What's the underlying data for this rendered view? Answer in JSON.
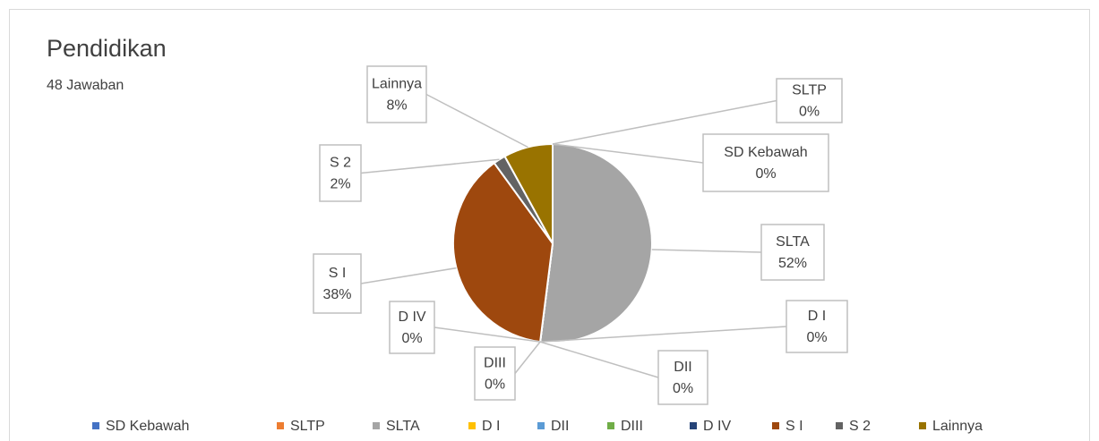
{
  "chart_data": {
    "type": "pie",
    "title": "Pendidikan",
    "subtitle": "48 Jawaban",
    "categories": [
      "SD Kebawah",
      "SLTP",
      "SLTA",
      "D I",
      "DII",
      "DIII",
      "D IV",
      "S I",
      "S 2",
      "Lainnya"
    ],
    "values": [
      0,
      0,
      52,
      0,
      0,
      0,
      0,
      38,
      2,
      8
    ],
    "value_labels": [
      "0%",
      "0%",
      "52%",
      "0%",
      "0%",
      "0%",
      "0%",
      "38%",
      "2%",
      "8%"
    ],
    "colors": [
      "#4472c4",
      "#ed7d31",
      "#a5a5a5",
      "#ffc000",
      "#5b9bd5",
      "#70ad47",
      "#264478",
      "#9e480e",
      "#636363",
      "#997300"
    ],
    "legend": "bottom"
  }
}
